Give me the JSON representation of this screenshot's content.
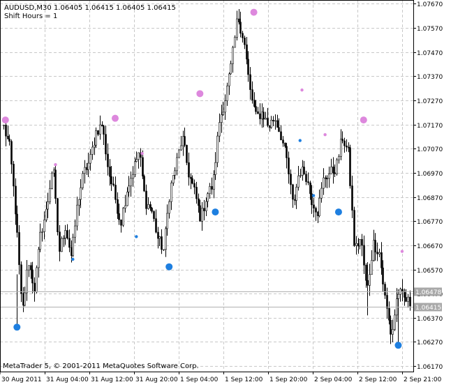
{
  "window": {
    "symbol_line": "AUDUSD,M30  1.06405 1.06415 1.06405 1.06415",
    "param_line": "Shift Hours = 1",
    "copyright": "MetaTrader 5, © 2001-2011 MetaQuotes Software Corp."
  },
  "colors": {
    "background": "#ffffff",
    "grid": "#c8c8c8",
    "axis": "#000000",
    "candle": "#000000",
    "top_marker": "#dd88dd",
    "bottom_marker": "#1e7fe0",
    "price_line": "#b0b0b0",
    "price_tag": "#a8a8a8"
  },
  "chart_data": {
    "type": "candlestick",
    "price_axis": {
      "min": 1.0615,
      "max": 1.0768,
      "ticks": [
        "1.07670",
        "1.07570",
        "1.07470",
        "1.07370",
        "1.07270",
        "1.07170",
        "1.07070",
        "1.06970",
        "1.06870",
        "1.06770",
        "1.06670",
        "1.06570",
        "1.06470",
        "1.06370",
        "1.06270",
        "1.06170"
      ]
    },
    "time_labels": [
      "30 Aug 2011",
      "31 Aug 04:00",
      "31 Aug 12:00",
      "31 Aug 20:00",
      "1 Sep 04:00",
      "1 Sep 12:00",
      "1 Sep 20:00",
      "2 Sep 04:00",
      "2 Sep 12:00",
      "2 Sep 21:00"
    ],
    "price_tags": [
      "1.06478",
      "1.06415"
    ],
    "key_points": [
      1.0716,
      1.0707,
      1.0678,
      1.0638,
      1.0661,
      1.0649,
      1.0672,
      1.0682,
      1.0701,
      1.0664,
      1.0675,
      1.0662,
      1.0685,
      1.0697,
      1.0702,
      1.0714,
      1.0717,
      1.0698,
      1.0688,
      1.0676,
      1.069,
      1.0698,
      1.0706,
      1.0685,
      1.0682,
      1.067,
      1.0665,
      1.069,
      1.07,
      1.0712,
      1.0697,
      1.0689,
      1.0678,
      1.0688,
      1.0692,
      1.0718,
      1.0728,
      1.0742,
      1.0762,
      1.0752,
      1.0731,
      1.072,
      1.0722,
      1.0716,
      1.072,
      1.0713,
      1.0702,
      1.0683,
      1.0698,
      1.0697,
      1.0686,
      1.0681,
      1.0695,
      1.0697,
      1.0699,
      1.0712,
      1.0705,
      1.0665,
      1.067,
      1.0647,
      1.0668,
      1.0664,
      1.0644,
      1.0629,
      1.0648,
      1.0645,
      1.0643
    ],
    "fractal_tops": [
      {
        "bar": 1,
        "price": 1.07189,
        "size": "large"
      },
      {
        "bar": 27,
        "price": 1.07004,
        "size": "small"
      },
      {
        "bar": 58,
        "price": 1.07196,
        "size": "large"
      },
      {
        "bar": 72,
        "price": 1.0705,
        "size": "small"
      },
      {
        "bar": 102,
        "price": 1.07298,
        "size": "large"
      },
      {
        "bar": 130,
        "price": 1.07635,
        "size": "large"
      },
      {
        "bar": 155,
        "price": 1.07313,
        "size": "small"
      },
      {
        "bar": 167,
        "price": 1.07128,
        "size": "small"
      },
      {
        "bar": 187,
        "price": 1.07189,
        "size": "large"
      },
      {
        "bar": 207,
        "price": 1.06645,
        "size": "small"
      }
    ],
    "fractal_bottoms": [
      {
        "bar": 7,
        "price": 1.06331,
        "size": "large"
      },
      {
        "bar": 36,
        "price": 1.06612,
        "size": "small"
      },
      {
        "bar": 69,
        "price": 1.06706,
        "size": "small"
      },
      {
        "bar": 86,
        "price": 1.06581,
        "size": "large"
      },
      {
        "bar": 110,
        "price": 1.06808,
        "size": "large"
      },
      {
        "bar": 154,
        "price": 1.07104,
        "size": "small"
      },
      {
        "bar": 161,
        "price": 1.06876,
        "size": "small"
      },
      {
        "bar": 174,
        "price": 1.06808,
        "size": "large"
      },
      {
        "bar": 205,
        "price": 1.06256,
        "size": "large"
      }
    ]
  }
}
